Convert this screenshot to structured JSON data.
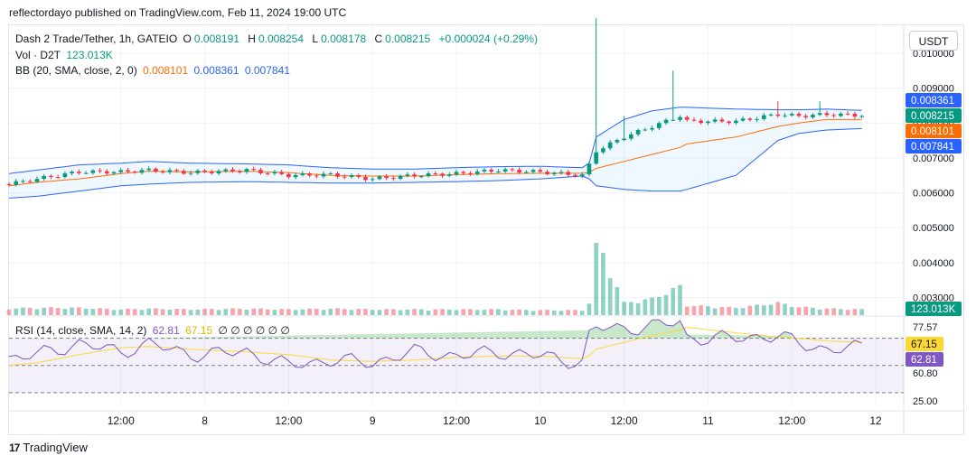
{
  "header": {
    "published": "reflectordayo published on TradingView.com, Feb 11, 2024 19:00 UTC"
  },
  "legend": {
    "pair": "Dash 2 Trade/Tether, 1h, GATEIO",
    "open_label": "O",
    "open": "0.008191",
    "high_label": "H",
    "high": "0.008254",
    "low_label": "L",
    "low": "0.008178",
    "close_label": "C",
    "close": "0.008215",
    "change": "+0.000024 (+0.29%)",
    "vol_label": "Vol · D2T",
    "vol": "123.013K",
    "bb_label": "BB (20, SMA, close, 2, 0)",
    "bb_basis": "0.008101",
    "bb_upper": "0.008361",
    "bb_lower": "0.007841",
    "rsi_label": "RSI (14, close, SMA, 14, 2)",
    "rsi_value": "62.81",
    "rsi_ma": "67.15",
    "rsi_extra": "∅ ∅ ∅ ∅ ∅ ∅"
  },
  "currency_button": "USDT",
  "footer": {
    "brand": "TradingView",
    "logo": "17"
  },
  "colors": {
    "up": "#089981",
    "down": "#f23645",
    "basis": "#ff6d00",
    "band": "#2962ff",
    "rsi": "#7e57c2",
    "rsi_ma": "#fdd835"
  },
  "chart_data": {
    "type": "candlestick",
    "price_axis": {
      "ticks": [
        "0.010000",
        "0.009000",
        "0.008000",
        "0.007000",
        "0.006000",
        "0.005000",
        "0.004000",
        "0.003000"
      ],
      "min": 0.0026,
      "max": 0.0108
    },
    "price_labels": [
      {
        "name": "bb-upper",
        "value": 0.008361,
        "text": "0.008361",
        "color": "#2962ff"
      },
      {
        "name": "close",
        "value": 0.008215,
        "text": "0.008215",
        "color": "#089981"
      },
      {
        "name": "bb-basis",
        "value": 0.008101,
        "text": "0.008101",
        "color": "#ff6d00"
      },
      {
        "name": "bb-lower",
        "value": 0.007841,
        "text": "0.007841",
        "color": "#2962ff"
      }
    ],
    "volume_label": {
      "text": "123.013K",
      "color": "#089981"
    },
    "rsi_axis": {
      "ticks": [
        "77.57",
        "60.80",
        "25.00"
      ],
      "levels": [
        70,
        50,
        30
      ],
      "min": 20,
      "max": 85
    },
    "rsi_labels": [
      {
        "name": "rsi-ma",
        "value": 67.15,
        "text": "67.15",
        "color": "#fdd835",
        "textColor": "#131722"
      },
      {
        "name": "rsi",
        "value": 62.81,
        "text": "62.81",
        "color": "#7e57c2",
        "textColor": "#ffffff"
      }
    ],
    "x_ticks": [
      {
        "label": "12:00",
        "t": 12
      },
      {
        "label": "8",
        "t": 24
      },
      {
        "label": "12:00",
        "t": 36
      },
      {
        "label": "9",
        "t": 48
      },
      {
        "label": "12:00",
        "t": 60
      },
      {
        "label": "10",
        "t": 72
      },
      {
        "label": "12:00",
        "t": 84
      },
      {
        "label": "11",
        "t": 96
      },
      {
        "label": "12:00",
        "t": 108
      },
      {
        "label": "12",
        "t": 120
      }
    ],
    "t_start": -4,
    "t_end": 124,
    "anchors": [
      {
        "t": -4,
        "p": 0.00625,
        "up": 0.00655,
        "lo": 0.00585,
        "bs": 0.0062,
        "rsi": 55,
        "rma": 50,
        "v": 0.8
      },
      {
        "t": 0,
        "p": 0.0064,
        "up": 0.00665,
        "lo": 0.0059,
        "bs": 0.0063,
        "rsi": 58,
        "rma": 52,
        "v": 0.9
      },
      {
        "t": 6,
        "p": 0.0066,
        "up": 0.0068,
        "lo": 0.00605,
        "bs": 0.0064,
        "rsi": 66,
        "rma": 58,
        "v": 0.9
      },
      {
        "t": 12,
        "p": 0.0066,
        "up": 0.00685,
        "lo": 0.0062,
        "bs": 0.00655,
        "rsi": 60,
        "rma": 63,
        "v": 0.7
      },
      {
        "t": 16,
        "p": 0.00665,
        "up": 0.0069,
        "lo": 0.00625,
        "bs": 0.00662,
        "rsi": 66,
        "rma": 64,
        "v": 0.8
      },
      {
        "t": 22,
        "p": 0.00658,
        "up": 0.00685,
        "lo": 0.0063,
        "bs": 0.0066,
        "rsi": 58,
        "rma": 62,
        "v": 0.7
      },
      {
        "t": 30,
        "p": 0.00665,
        "up": 0.00683,
        "lo": 0.00632,
        "bs": 0.00662,
        "rsi": 60,
        "rma": 60,
        "v": 0.8
      },
      {
        "t": 36,
        "p": 0.0065,
        "up": 0.0068,
        "lo": 0.0063,
        "bs": 0.00658,
        "rsi": 50,
        "rma": 58,
        "v": 0.7
      },
      {
        "t": 42,
        "p": 0.00652,
        "up": 0.00672,
        "lo": 0.00628,
        "bs": 0.0065,
        "rsi": 54,
        "rma": 54,
        "v": 0.8
      },
      {
        "t": 48,
        "p": 0.0064,
        "up": 0.00668,
        "lo": 0.00628,
        "bs": 0.00648,
        "rsi": 52,
        "rma": 53,
        "v": 0.7
      },
      {
        "t": 54,
        "p": 0.0065,
        "up": 0.00668,
        "lo": 0.0063,
        "bs": 0.00648,
        "rsi": 60,
        "rma": 54,
        "v": 0.7
      },
      {
        "t": 60,
        "p": 0.00655,
        "up": 0.00672,
        "lo": 0.00632,
        "bs": 0.00652,
        "rsi": 57,
        "rma": 56,
        "v": 0.7
      },
      {
        "t": 66,
        "p": 0.00665,
        "up": 0.00675,
        "lo": 0.00635,
        "bs": 0.00655,
        "rsi": 60,
        "rma": 57,
        "v": 0.7
      },
      {
        "t": 72,
        "p": 0.0066,
        "up": 0.00676,
        "lo": 0.0064,
        "bs": 0.00656,
        "rsi": 57,
        "rma": 57,
        "v": 0.6
      },
      {
        "t": 78,
        "p": 0.0065,
        "up": 0.00672,
        "lo": 0.00648,
        "bs": 0.00656,
        "rsi": 52,
        "rma": 55,
        "v": 0.6
      },
      {
        "t": 79,
        "p": 0.0068,
        "up": 0.00685,
        "lo": 0.0064,
        "bs": 0.00658,
        "rsi": 72,
        "rma": 57,
        "v": 1.5
      },
      {
        "t": 80,
        "p": 0.0072,
        "up": 0.0076,
        "lo": 0.0062,
        "bs": 0.0067,
        "rsi": 78,
        "rma": 62,
        "v": 9.4
      },
      {
        "t": 84,
        "p": 0.0076,
        "up": 0.0081,
        "lo": 0.0061,
        "bs": 0.0069,
        "rsi": 77,
        "rma": 67,
        "v": 1.5
      },
      {
        "t": 88,
        "p": 0.0079,
        "up": 0.00835,
        "lo": 0.00605,
        "bs": 0.0071,
        "rsi": 79,
        "rma": 72,
        "v": 2.0
      },
      {
        "t": 92,
        "p": 0.0082,
        "up": 0.00845,
        "lo": 0.00605,
        "bs": 0.0073,
        "rsi": 82,
        "rma": 76,
        "v": 3.5
      },
      {
        "t": 93,
        "p": 0.00805,
        "up": 0.00845,
        "lo": 0.0061,
        "bs": 0.0074,
        "rsi": 70,
        "rma": 78,
        "v": 1.2
      },
      {
        "t": 100,
        "p": 0.00805,
        "up": 0.0084,
        "lo": 0.0065,
        "bs": 0.0076,
        "rsi": 70,
        "rma": 74,
        "v": 0.9
      },
      {
        "t": 106,
        "p": 0.00825,
        "up": 0.00838,
        "lo": 0.0075,
        "bs": 0.0079,
        "rsi": 72,
        "rma": 71,
        "v": 1.5
      },
      {
        "t": 109,
        "p": 0.0082,
        "up": 0.00838,
        "lo": 0.0077,
        "bs": 0.008,
        "rsi": 66,
        "rma": 70,
        "v": 1.0
      },
      {
        "t": 113,
        "p": 0.00825,
        "up": 0.0084,
        "lo": 0.0078,
        "bs": 0.0081,
        "rsi": 62,
        "rma": 68,
        "v": 0.8
      },
      {
        "t": 118,
        "p": 0.00822,
        "up": 0.00836,
        "lo": 0.00784,
        "bs": 0.0081,
        "rsi": 63,
        "rma": 67,
        "v": 0.7
      }
    ],
    "spikes": [
      {
        "t": 80,
        "high": 0.011
      },
      {
        "t": 84,
        "high": 0.0082
      },
      {
        "t": 91,
        "high": 0.0095
      },
      {
        "t": 106,
        "high": 0.00862
      },
      {
        "t": 112,
        "high": 0.00862
      }
    ],
    "last_t": 118
  }
}
